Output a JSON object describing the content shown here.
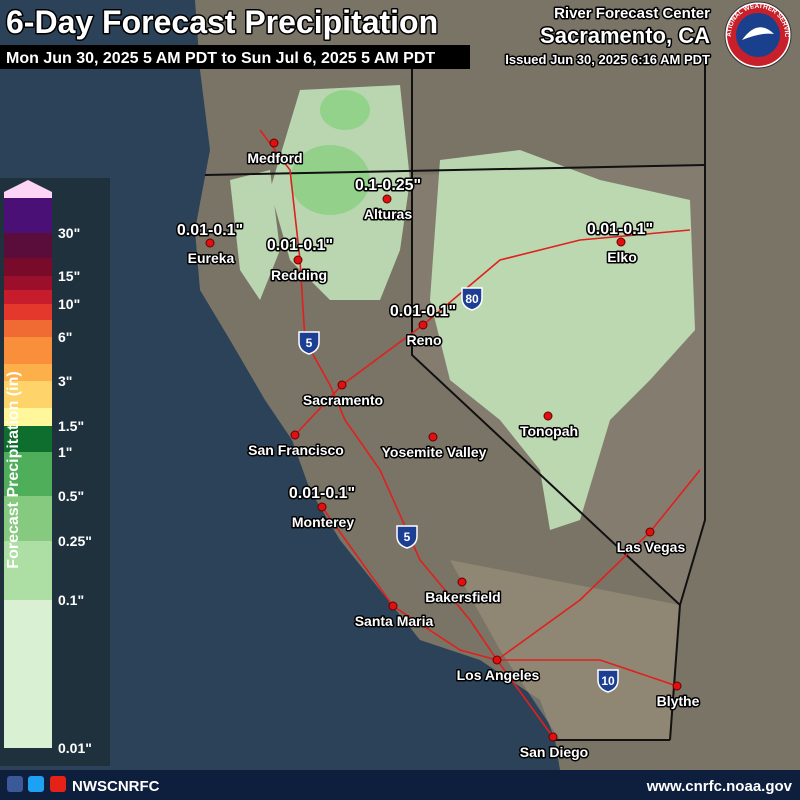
{
  "header": {
    "title": "6-Day Forecast Precipitation",
    "subtitle": "Mon Jun 30, 2025 5 AM PDT to Sun Jul 6, 2025 5 AM PDT",
    "center": "River Forecast Center",
    "location": "Sacramento, CA",
    "issued": "Issued Jun 30, 2025 6:16 AM PDT",
    "logo_text": "NATIONAL WEATHER SERVICE"
  },
  "legend": {
    "title": "Forecast Precipitation (in)",
    "labels": [
      "30\"",
      "15\"",
      "10\"",
      "6\"",
      "3\"",
      "1.5\"",
      "1\"",
      "0.5\"",
      "0.25\"",
      "0.1\"",
      "0.01\""
    ],
    "colors": [
      "#d9f0d3",
      "#addfa5",
      "#85ca7f",
      "#4fae5a",
      "#0d6e2e",
      "#fff79a",
      "#fed36a",
      "#fdb04a",
      "#f98e3b",
      "#f06a33",
      "#e3382b",
      "#c61c2b",
      "#9b0f2a",
      "#780a2a",
      "#5a0d3a",
      "#4a1075"
    ],
    "top_color": "#fdd5f5"
  },
  "cities": [
    "Medford",
    "Alturas",
    "Eureka",
    "Redding",
    "Reno",
    "Elko",
    "Sacramento",
    "San Francisco",
    "Yosemite Valley",
    "Tonopah",
    "Monterey",
    "Las Vegas",
    "Bakersfield",
    "Santa Maria",
    "Los Angeles",
    "Blythe",
    "San Diego"
  ],
  "amounts": [
    "0.1-0.25\"",
    "0.01-0.1\"",
    "0.01-0.1\"",
    "0.01-0.1\"",
    "0.01-0.1\"",
    "0.01-0.1\""
  ],
  "highways": [
    "5",
    "80",
    "5",
    "10"
  ],
  "footer": {
    "handle": "NWSCNRFC",
    "url": "www.cnrfc.noaa.gov"
  }
}
